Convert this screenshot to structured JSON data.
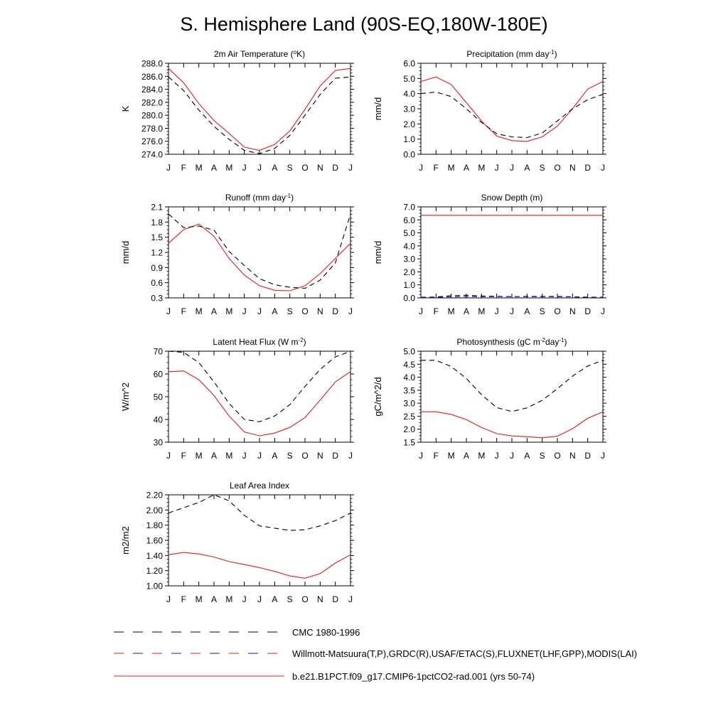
{
  "title": "S. Hemisphere Land (90S-EQ,180W-180E)",
  "months": [
    "J",
    "F",
    "M",
    "A",
    "M",
    "J",
    "J",
    "A",
    "S",
    "O",
    "N",
    "D",
    "J"
  ],
  "colors": {
    "model": "#e8191c",
    "cmc": "#000000",
    "obs": "#1414d4"
  },
  "chart_data": [
    {
      "type": "line",
      "title_parts": [
        {
          "text": "2m Air Temperature ("
        },
        {
          "text": "o",
          "sup": true
        },
        {
          "text": "K)"
        }
      ],
      "ylabel": "K",
      "ylim": [
        274.0,
        288.0
      ],
      "yticks": [
        "274.0",
        "276.0",
        "278.0",
        "280.0",
        "282.0",
        "284.0",
        "286.0",
        "288.0"
      ],
      "series": [
        {
          "role": "model",
          "values": [
            287.2,
            285.0,
            281.8,
            279.2,
            277.2,
            275.1,
            274.6,
            275.5,
            277.6,
            280.9,
            284.5,
            286.9,
            287.2
          ]
        },
        {
          "role": "cmc",
          "values": [
            285.9,
            283.8,
            280.8,
            278.3,
            276.3,
            274.6,
            274.1,
            274.9,
            276.9,
            280.0,
            283.2,
            285.7,
            285.9
          ]
        }
      ]
    },
    {
      "type": "line",
      "title_parts": [
        {
          "text": "Precipitation (mm day"
        },
        {
          "text": "-1",
          "sup": true
        },
        {
          "text": ")"
        }
      ],
      "ylabel": "mm/d",
      "ylim": [
        0.0,
        6.0
      ],
      "yticks": [
        "0.0",
        "1.0",
        "2.0",
        "3.0",
        "4.0",
        "5.0",
        "6.0"
      ],
      "series": [
        {
          "role": "model",
          "values": [
            4.8,
            5.1,
            4.6,
            3.4,
            2.2,
            1.2,
            0.9,
            0.85,
            1.15,
            1.85,
            3.0,
            4.3,
            4.8
          ]
        },
        {
          "role": "cmc",
          "values": [
            4.0,
            4.1,
            3.8,
            3.0,
            2.1,
            1.35,
            1.15,
            1.1,
            1.4,
            2.2,
            3.0,
            3.6,
            3.95
          ]
        }
      ]
    },
    {
      "type": "line",
      "title_parts": [
        {
          "text": "Runoff (mm day"
        },
        {
          "text": "-1",
          "sup": true
        },
        {
          "text": ")"
        }
      ],
      "ylabel": "mm/d",
      "ylim": [
        0.3,
        2.1
      ],
      "yticks": [
        "0.3",
        "0.6",
        "0.9",
        "1.2",
        "1.5",
        "1.8",
        "2.1"
      ],
      "series": [
        {
          "role": "model",
          "values": [
            1.38,
            1.65,
            1.76,
            1.52,
            1.08,
            0.75,
            0.54,
            0.45,
            0.44,
            0.54,
            0.78,
            1.08,
            1.38
          ]
        },
        {
          "role": "cmc",
          "values": [
            1.96,
            1.69,
            1.72,
            1.64,
            1.22,
            0.94,
            0.68,
            0.56,
            0.51,
            0.49,
            0.65,
            0.99,
            1.96
          ]
        }
      ]
    },
    {
      "type": "line",
      "title_parts": [
        {
          "text": "Snow Depth (m)"
        }
      ],
      "ylabel": "mm/d",
      "ylim": [
        0.0,
        7.0
      ],
      "yticks": [
        "0.0",
        "1.0",
        "2.0",
        "3.0",
        "4.0",
        "5.0",
        "6.0",
        "7.0"
      ],
      "series": [
        {
          "role": "model",
          "values": [
            6.35,
            6.35,
            6.35,
            6.35,
            6.35,
            6.35,
            6.35,
            6.35,
            6.35,
            6.35,
            6.35,
            6.35,
            6.35
          ]
        },
        {
          "role": "cmc",
          "values": [
            0.05,
            0.07,
            0.17,
            0.2,
            0.15,
            0.12,
            0.1,
            0.1,
            0.1,
            0.1,
            0.08,
            0.06,
            0.05
          ]
        },
        {
          "role": "obs",
          "values": [
            0.03,
            0.04,
            0.08,
            0.1,
            0.1,
            0.1,
            0.1,
            0.12,
            0.12,
            0.12,
            0.08,
            0.05,
            0.03
          ]
        }
      ]
    },
    {
      "type": "line",
      "title_parts": [
        {
          "text": "Latent Heat Flux (W m"
        },
        {
          "text": "-2",
          "sup": true
        },
        {
          "text": ")"
        }
      ],
      "ylabel": "W/m^2",
      "ylim": [
        30,
        70
      ],
      "yticks": [
        "30",
        "40",
        "50",
        "60",
        "70"
      ],
      "series": [
        {
          "role": "model",
          "values": [
            61.0,
            61.3,
            57.5,
            50.5,
            41.5,
            34.5,
            32.8,
            34.0,
            36.5,
            40.8,
            48.5,
            56.5,
            61.0
          ]
        },
        {
          "role": "cmc",
          "values": [
            70.0,
            69.5,
            65.0,
            56.5,
            47.0,
            40.0,
            39.0,
            41.5,
            46.5,
            54.5,
            62.0,
            67.5,
            70.0
          ]
        }
      ]
    },
    {
      "type": "line",
      "title_parts": [
        {
          "text": "Photosynthesis (gC m"
        },
        {
          "text": "-2",
          "sup": true
        },
        {
          "text": "day"
        },
        {
          "text": "-1",
          "sup": true
        },
        {
          "text": ")"
        }
      ],
      "ylabel": "gC/m^2/d",
      "ylim": [
        1.5,
        5.0
      ],
      "yticks": [
        "1.5",
        "2.0",
        "2.5",
        "3.0",
        "3.5",
        "4.0",
        "4.5",
        "5.0"
      ],
      "series": [
        {
          "role": "model",
          "values": [
            2.67,
            2.67,
            2.57,
            2.37,
            2.07,
            1.83,
            1.74,
            1.71,
            1.67,
            1.73,
            2.02,
            2.42,
            2.67
          ]
        },
        {
          "role": "cmc",
          "values": [
            4.65,
            4.65,
            4.41,
            3.95,
            3.33,
            2.83,
            2.68,
            2.82,
            3.11,
            3.56,
            4.04,
            4.43,
            4.65
          ]
        }
      ]
    },
    {
      "type": "line",
      "title_parts": [
        {
          "text": "Leaf Area Index"
        }
      ],
      "ylabel": "m2/m2",
      "ylim": [
        1.0,
        2.2
      ],
      "yticks": [
        "1.00",
        "1.20",
        "1.40",
        "1.60",
        "1.80",
        "2.00",
        "2.20"
      ],
      "series": [
        {
          "role": "model",
          "values": [
            1.41,
            1.44,
            1.42,
            1.38,
            1.32,
            1.28,
            1.24,
            1.19,
            1.13,
            1.1,
            1.16,
            1.3,
            1.41
          ]
        },
        {
          "role": "cmc",
          "values": [
            1.96,
            2.03,
            2.1,
            2.2,
            2.12,
            1.93,
            1.79,
            1.76,
            1.73,
            1.74,
            1.79,
            1.86,
            1.96
          ]
        }
      ]
    }
  ],
  "legend": [
    {
      "role": "cmc",
      "label": "CMC 1980-1996"
    },
    {
      "role": "obs",
      "label": "Willmott-Matsuura(T,P),GRDC(R),USAF/ETAC(S),FLUXNET(LHF,GPP),MODIS(LAI)"
    },
    {
      "role": "model",
      "label": "b.e21.B1PCT.f09_g17.CMIP6-1pctCO2-rad.001 (yrs 50-74)"
    }
  ]
}
